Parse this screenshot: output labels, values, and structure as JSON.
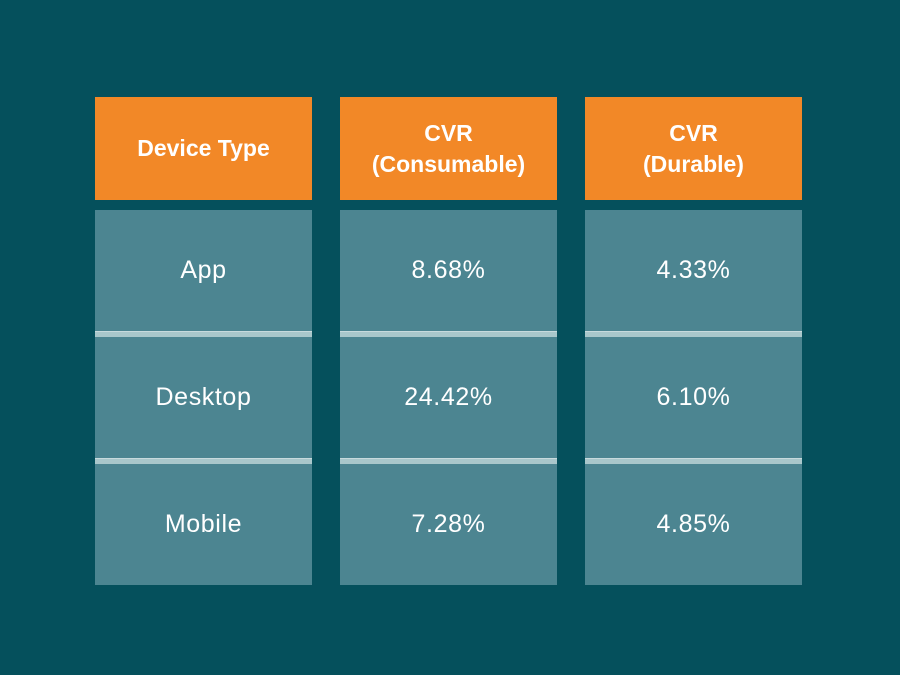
{
  "colors": {
    "background": "#05505C",
    "header_bg": "#F28827",
    "cell_bg": "#4C8591",
    "separator": "#A9C7CB",
    "text": "#FFFFFF"
  },
  "table": {
    "headers": {
      "device_type": "Device Type",
      "cvr_consumable": "CVR\n(Consumable)",
      "cvr_durable": "CVR\n(Durable)"
    },
    "rows": [
      {
        "cells": [
          "App",
          "8.68%",
          "4.33%"
        ]
      },
      {
        "cells": [
          "Desktop",
          "24.42%",
          "6.10%"
        ]
      },
      {
        "cells": [
          "Mobile",
          "7.28%",
          "4.85%"
        ]
      }
    ]
  },
  "chart_data": {
    "type": "table",
    "columns": [
      "Device Type",
      "CVR (Consumable)",
      "CVR (Durable)"
    ],
    "rows": [
      [
        "App",
        "8.68%",
        "4.33%"
      ],
      [
        "Desktop",
        "24.42%",
        "6.10%"
      ],
      [
        "Mobile",
        "7.28%",
        "4.85%"
      ]
    ],
    "values_numeric": {
      "cvr_consumable_pct": [
        8.68,
        24.42,
        7.28
      ],
      "cvr_durable_pct": [
        4.33,
        6.1,
        4.85
      ]
    },
    "title": "",
    "legend": "none",
    "grid": "off"
  }
}
